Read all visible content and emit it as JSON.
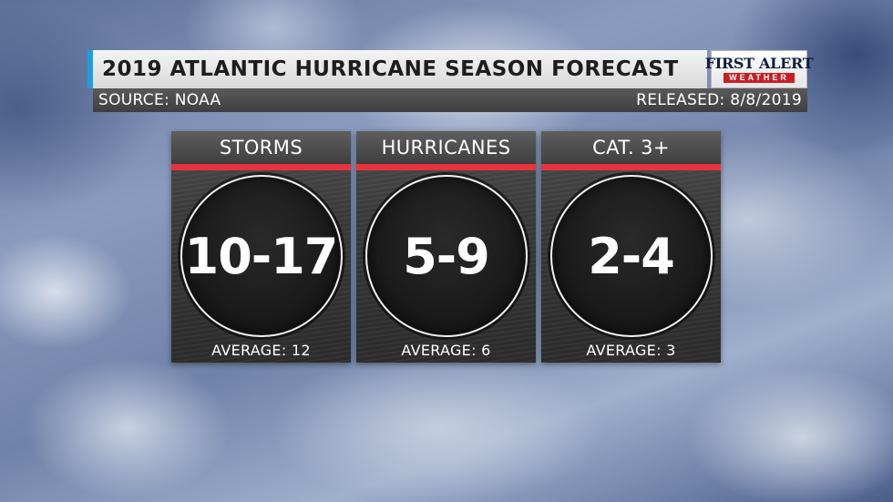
{
  "header": {
    "title": "2019 ATLANTIC HURRICANE SEASON FORECAST",
    "source": "SOURCE: NOAA",
    "released": "RELEASED: 8/8/2019"
  },
  "logo": {
    "main": "FIRST ALERT",
    "sub": "WEATHER"
  },
  "colors": {
    "accent_blue": "#1aa0e0",
    "stripe_red": "#e8323c",
    "card_dark": "#2c2c2c"
  },
  "cards": [
    {
      "title": "STORMS",
      "value": "10-17",
      "average": "AVERAGE: 12"
    },
    {
      "title": "HURRICANES",
      "value": "5-9",
      "average": "AVERAGE: 6"
    },
    {
      "title": "CAT. 3+",
      "value": "2-4",
      "average": "AVERAGE: 3"
    }
  ]
}
